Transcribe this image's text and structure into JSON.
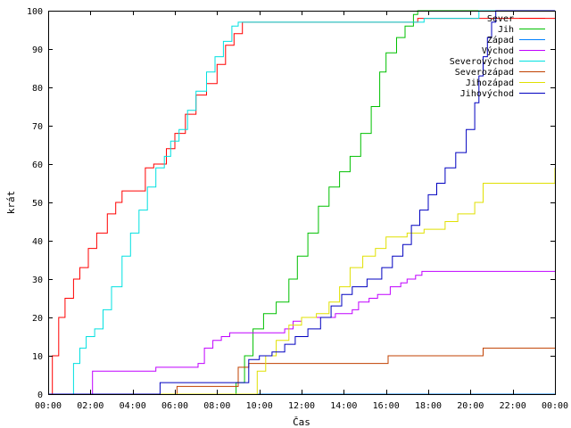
{
  "chart_data": {
    "type": "line",
    "step": true,
    "xlabel": "Čas",
    "ylabel": "krát",
    "xlim": [
      0,
      24
    ],
    "ylim": [
      0,
      100
    ],
    "x_unit": "hours",
    "x_ticks": [
      {
        "value": 0,
        "label": "00:00"
      },
      {
        "value": 2,
        "label": "02:00"
      },
      {
        "value": 4,
        "label": "04:00"
      },
      {
        "value": 6,
        "label": "06:00"
      },
      {
        "value": 8,
        "label": "08:00"
      },
      {
        "value": 10,
        "label": "10:00"
      },
      {
        "value": 12,
        "label": "12:00"
      },
      {
        "value": 14,
        "label": "14:00"
      },
      {
        "value": 16,
        "label": "16:00"
      },
      {
        "value": 18,
        "label": "18:00"
      },
      {
        "value": 20,
        "label": "20:00"
      },
      {
        "value": 22,
        "label": "22:00"
      },
      {
        "value": 24,
        "label": "00:00"
      }
    ],
    "y_ticks": [
      0,
      10,
      20,
      30,
      40,
      50,
      60,
      70,
      80,
      90,
      100
    ],
    "grid": false,
    "legend_position": "top-right",
    "series": [
      {
        "name": "Sever",
        "color": "#ff0000",
        "points": [
          [
            0,
            0
          ],
          [
            0.2,
            10
          ],
          [
            0.5,
            20
          ],
          [
            0.8,
            25
          ],
          [
            1.2,
            30
          ],
          [
            1.5,
            33
          ],
          [
            1.9,
            38
          ],
          [
            2.3,
            42
          ],
          [
            2.8,
            47
          ],
          [
            3.2,
            50
          ],
          [
            3.5,
            53
          ],
          [
            4.2,
            53
          ],
          [
            4.6,
            59
          ],
          [
            5.0,
            60
          ],
          [
            5.2,
            60
          ],
          [
            5.6,
            64
          ],
          [
            6.0,
            68
          ],
          [
            6.5,
            73
          ],
          [
            7.0,
            78
          ],
          [
            7.5,
            81
          ],
          [
            8.0,
            86
          ],
          [
            8.4,
            91
          ],
          [
            8.8,
            94
          ],
          [
            9.2,
            97
          ],
          [
            9.5,
            97
          ],
          [
            17.5,
            97
          ],
          [
            17.5,
            98
          ],
          [
            24,
            98
          ]
        ]
      },
      {
        "name": "Jih",
        "color": "#00c000",
        "points": [
          [
            0,
            0
          ],
          [
            8.7,
            0
          ],
          [
            8.9,
            3
          ],
          [
            9.3,
            10
          ],
          [
            9.7,
            17
          ],
          [
            10.2,
            21
          ],
          [
            10.8,
            24
          ],
          [
            11.4,
            30
          ],
          [
            11.8,
            36
          ],
          [
            12.3,
            42
          ],
          [
            12.8,
            49
          ],
          [
            13.3,
            54
          ],
          [
            13.8,
            58
          ],
          [
            14.3,
            62
          ],
          [
            14.8,
            68
          ],
          [
            15.3,
            75
          ],
          [
            15.7,
            84
          ],
          [
            16.0,
            89
          ],
          [
            16.5,
            93
          ],
          [
            16.9,
            96
          ],
          [
            17.3,
            99
          ],
          [
            17.5,
            100
          ],
          [
            24,
            100
          ]
        ]
      },
      {
        "name": "Západ",
        "color": "#0080ff",
        "points": [
          [
            0,
            0
          ],
          [
            24,
            0
          ]
        ]
      },
      {
        "name": "Východ",
        "color": "#c000ff",
        "points": [
          [
            0,
            0
          ],
          [
            2.0,
            0
          ],
          [
            2.1,
            6
          ],
          [
            5.0,
            6
          ],
          [
            5.1,
            7
          ],
          [
            7.1,
            8
          ],
          [
            7.4,
            12
          ],
          [
            7.8,
            14
          ],
          [
            8.2,
            15
          ],
          [
            8.6,
            16
          ],
          [
            10.8,
            16
          ],
          [
            11.2,
            17
          ],
          [
            11.6,
            19
          ],
          [
            12.0,
            20
          ],
          [
            13.6,
            21
          ],
          [
            14.4,
            22
          ],
          [
            14.7,
            24
          ],
          [
            15.2,
            25
          ],
          [
            15.6,
            26
          ],
          [
            16.2,
            28
          ],
          [
            16.7,
            29
          ],
          [
            17.0,
            30
          ],
          [
            17.4,
            31
          ],
          [
            17.7,
            32
          ],
          [
            24,
            32
          ]
        ]
      },
      {
        "name": "Severovýchod",
        "color": "#00e0e0",
        "points": [
          [
            0,
            0
          ],
          [
            1.0,
            0
          ],
          [
            1.2,
            8
          ],
          [
            1.5,
            12
          ],
          [
            1.8,
            15
          ],
          [
            2.2,
            17
          ],
          [
            2.6,
            22
          ],
          [
            3.0,
            28
          ],
          [
            3.5,
            36
          ],
          [
            3.9,
            42
          ],
          [
            4.3,
            48
          ],
          [
            4.7,
            54
          ],
          [
            5.1,
            59
          ],
          [
            5.5,
            62
          ],
          [
            5.8,
            66
          ],
          [
            6.2,
            69
          ],
          [
            6.6,
            74
          ],
          [
            7.0,
            79
          ],
          [
            7.5,
            84
          ],
          [
            7.9,
            88
          ],
          [
            8.3,
            92
          ],
          [
            8.7,
            96
          ],
          [
            9.0,
            97
          ],
          [
            17.8,
            97
          ],
          [
            17.8,
            98
          ],
          [
            20.4,
            98
          ],
          [
            20.4,
            100
          ],
          [
            24,
            100
          ]
        ]
      },
      {
        "name": "Severozápad",
        "color": "#c04000",
        "points": [
          [
            0,
            0
          ],
          [
            6.0,
            0
          ],
          [
            6.1,
            2
          ],
          [
            8.9,
            2
          ],
          [
            9.0,
            7
          ],
          [
            9.5,
            8
          ],
          [
            16.0,
            8
          ],
          [
            16.1,
            10
          ],
          [
            20.5,
            10
          ],
          [
            20.6,
            12
          ],
          [
            24,
            12
          ]
        ]
      },
      {
        "name": "Jihozápad",
        "color": "#e0e000",
        "points": [
          [
            0,
            0
          ],
          [
            9.7,
            0
          ],
          [
            9.9,
            6
          ],
          [
            10.3,
            10
          ],
          [
            10.8,
            14
          ],
          [
            11.4,
            18
          ],
          [
            12.0,
            20
          ],
          [
            12.7,
            21
          ],
          [
            13.3,
            24
          ],
          [
            13.8,
            28
          ],
          [
            14.3,
            33
          ],
          [
            14.9,
            36
          ],
          [
            15.5,
            38
          ],
          [
            16.0,
            41
          ],
          [
            17.0,
            42
          ],
          [
            17.8,
            43
          ],
          [
            18.8,
            45
          ],
          [
            19.4,
            47
          ],
          [
            20.2,
            50
          ],
          [
            20.6,
            55
          ],
          [
            23.8,
            55
          ],
          [
            24,
            59
          ]
        ]
      },
      {
        "name": "Jihovýchod",
        "color": "#0000c0",
        "points": [
          [
            0,
            0
          ],
          [
            5.2,
            0
          ],
          [
            5.3,
            3
          ],
          [
            9.0,
            3
          ],
          [
            9.5,
            9
          ],
          [
            10.0,
            10
          ],
          [
            10.6,
            11
          ],
          [
            11.2,
            13
          ],
          [
            11.7,
            15
          ],
          [
            12.3,
            17
          ],
          [
            12.9,
            20
          ],
          [
            13.4,
            23
          ],
          [
            13.9,
            26
          ],
          [
            14.4,
            28
          ],
          [
            15.1,
            30
          ],
          [
            15.8,
            33
          ],
          [
            16.3,
            36
          ],
          [
            16.8,
            39
          ],
          [
            17.2,
            44
          ],
          [
            17.6,
            48
          ],
          [
            18.0,
            52
          ],
          [
            18.4,
            55
          ],
          [
            18.8,
            59
          ],
          [
            19.3,
            63
          ],
          [
            19.8,
            69
          ],
          [
            20.2,
            76
          ],
          [
            20.4,
            83
          ],
          [
            20.6,
            88
          ],
          [
            20.8,
            93
          ],
          [
            21.0,
            97
          ],
          [
            21.2,
            100
          ],
          [
            24,
            100
          ]
        ]
      }
    ]
  }
}
